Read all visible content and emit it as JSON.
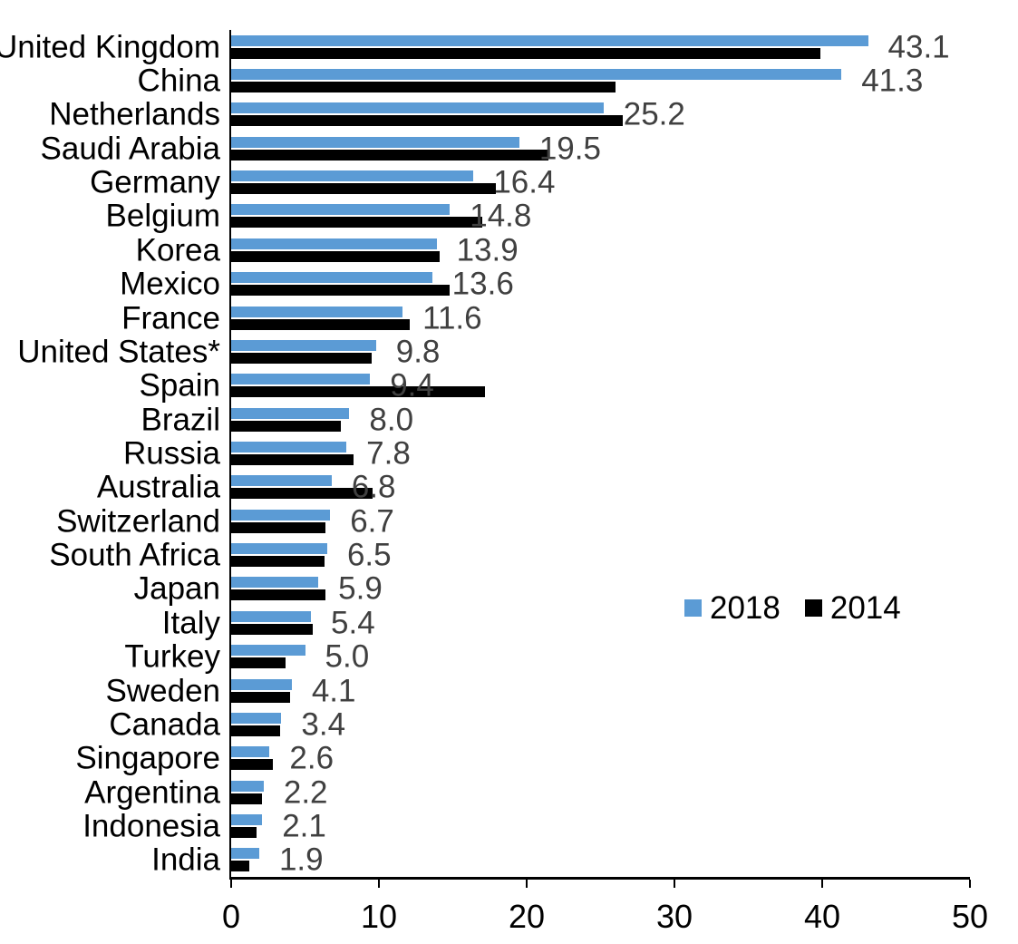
{
  "chart_data": {
    "type": "bar",
    "orientation": "horizontal",
    "title": "",
    "xlabel": "",
    "ylabel": "",
    "xlim": [
      0,
      50
    ],
    "x_ticks": [
      0,
      10,
      20,
      30,
      40,
      50
    ],
    "grid": false,
    "legend_position": "middle-right",
    "value_label_color": "#404040",
    "axis_color": "#000000",
    "background_color": "#ffffff",
    "categories": [
      "United Kingdom",
      "China",
      "Netherlands",
      "Saudi Arabia",
      "Germany",
      "Belgium",
      "Korea",
      "Mexico",
      "France",
      "United States*",
      "Spain",
      "Brazil",
      "Russia",
      "Australia",
      "Switzerland",
      "South Africa",
      "Japan",
      "Italy",
      "Turkey",
      "Sweden",
      "Canada",
      "Singapore",
      "Argentina",
      "Indonesia",
      "India"
    ],
    "series": [
      {
        "name": "2018",
        "color": "#5B9BD5",
        "values": [
          43.1,
          41.3,
          25.2,
          19.5,
          16.4,
          14.8,
          13.9,
          13.6,
          11.6,
          9.8,
          9.4,
          8.0,
          7.8,
          6.8,
          6.7,
          6.5,
          5.9,
          5.4,
          5.0,
          4.1,
          3.4,
          2.6,
          2.2,
          2.1,
          1.9
        ],
        "data_labels": [
          "43.1",
          "41.3",
          "25.2",
          "19.5",
          "16.4",
          "14.8",
          "13.9",
          "13.6",
          "11.6",
          "9.8",
          "9.4",
          "8.0",
          "7.8",
          "6.8",
          "6.7",
          "6.5",
          "5.9",
          "5.4",
          "5.0",
          "4.1",
          "3.4",
          "2.6",
          "2.2",
          "2.1",
          "1.9"
        ]
      },
      {
        "name": "2014",
        "color": "#000000",
        "values": [
          39.9,
          26.0,
          26.5,
          21.5,
          17.9,
          17.0,
          14.1,
          14.8,
          12.1,
          9.5,
          17.2,
          7.4,
          8.3,
          9.6,
          6.4,
          6.3,
          6.4,
          5.5,
          3.7,
          4.0,
          3.3,
          2.8,
          2.1,
          1.7,
          1.2
        ],
        "data_labels": []
      }
    ]
  }
}
